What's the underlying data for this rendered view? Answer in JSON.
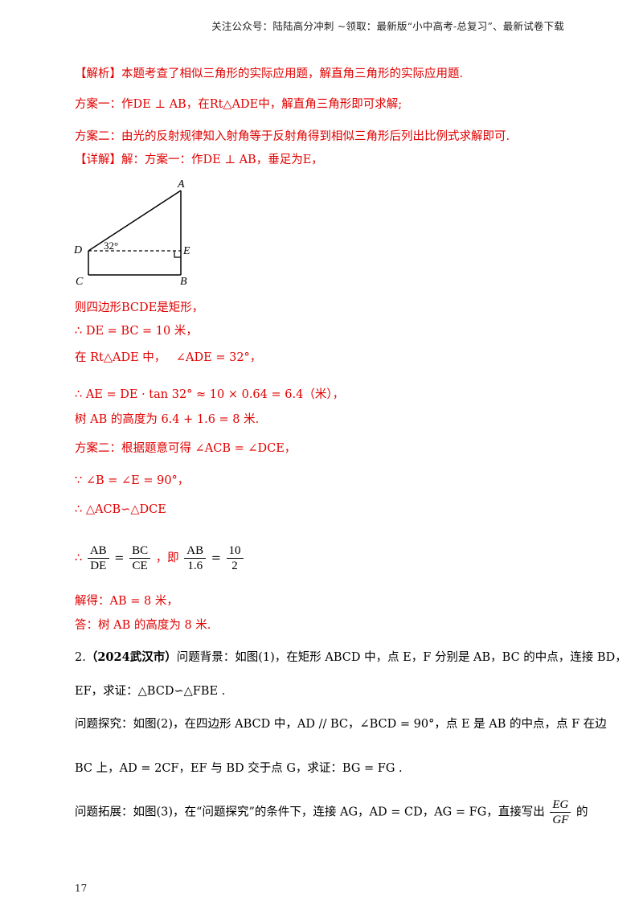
{
  "header": {
    "text": "关注公众号：陆陆高分冲刺 ~领取：最新版“小中高考-总复习”、最新试卷下载"
  },
  "analysis": {
    "tag": "【解析】",
    "text": "本题考查了相似三角形的实际应用题，解直角三角形的实际应用题.",
    "plan1": "方案一：作DE ⊥ AB，在Rt△ADE中，解直角三角形即可求解;",
    "plan2": "方案二：由光的反射规律知入射角等于反射角得到相似三角形后列出比例式求解即可."
  },
  "detail": {
    "tag": "【详解】",
    "intro": "解：方案一：作DE ⊥ AB，垂足为E，",
    "rect": "则四边形BCDE是矩形，",
    "s1": "∴ DE = BC = 10 米，",
    "s2a": "在 Rt△ADE 中，",
    "s2b": "∠ADE = 32°，",
    "s3": "∴ AE = DE · tan 32° ≈ 10 × 0.64 = 6.4（米），",
    "s4": "树 AB 的高度为 6.4 + 1.6 = 8 米.",
    "p2a": "方案二：根据题意可得 ∠ACB = ∠DCE，",
    "p2b": "∵ ∠B = ∠E = 90°，",
    "p2c": "∴ △ACB∽△DCE",
    "p2d_therefore": "∴",
    "p2d_f1_num": "AB",
    "p2d_f1_den": "DE",
    "p2d_f2_num": "BC",
    "p2d_f2_den": "CE",
    "p2d_mid": "，即",
    "p2d_f3_num": "AB",
    "p2d_f3_den": "1.6",
    "p2d_f4_num": "10",
    "p2d_f4_den": "2",
    "sol": "解得：AB = 8 米，",
    "ans": "答：树 AB 的高度为 8 米."
  },
  "figure": {
    "labels": {
      "A": "A",
      "B": "B",
      "C": "C",
      "D": "D",
      "E": "E"
    },
    "angle": "32°"
  },
  "problem2": {
    "num": "2.",
    "source": "（2024武汉市）",
    "bg": "问题背景：如图(1)，在矩形 ABCD 中，点 E，F 分别是 AB，BC 的中点，连接 BD，",
    "bg2": "EF，求证：△BCD∽△FBE .",
    "explore": "问题探究：如图(2)，在四边形 ABCD 中，AD // BC，∠BCD = 90°，点 E 是 AB 的中点，点 F 在边",
    "explore2": "BC 上，AD = 2CF，EF 与 BD 交于点 G，求证：BG = FG .",
    "extend": "问题拓展：如图(3)，在“问题探究”的条件下，连接 AG，AD = CD，AG = FG，直接写出",
    "extend_frac_num": "EG",
    "extend_frac_den": "GF",
    "extend_end": "的"
  },
  "page": {
    "number": "17"
  }
}
